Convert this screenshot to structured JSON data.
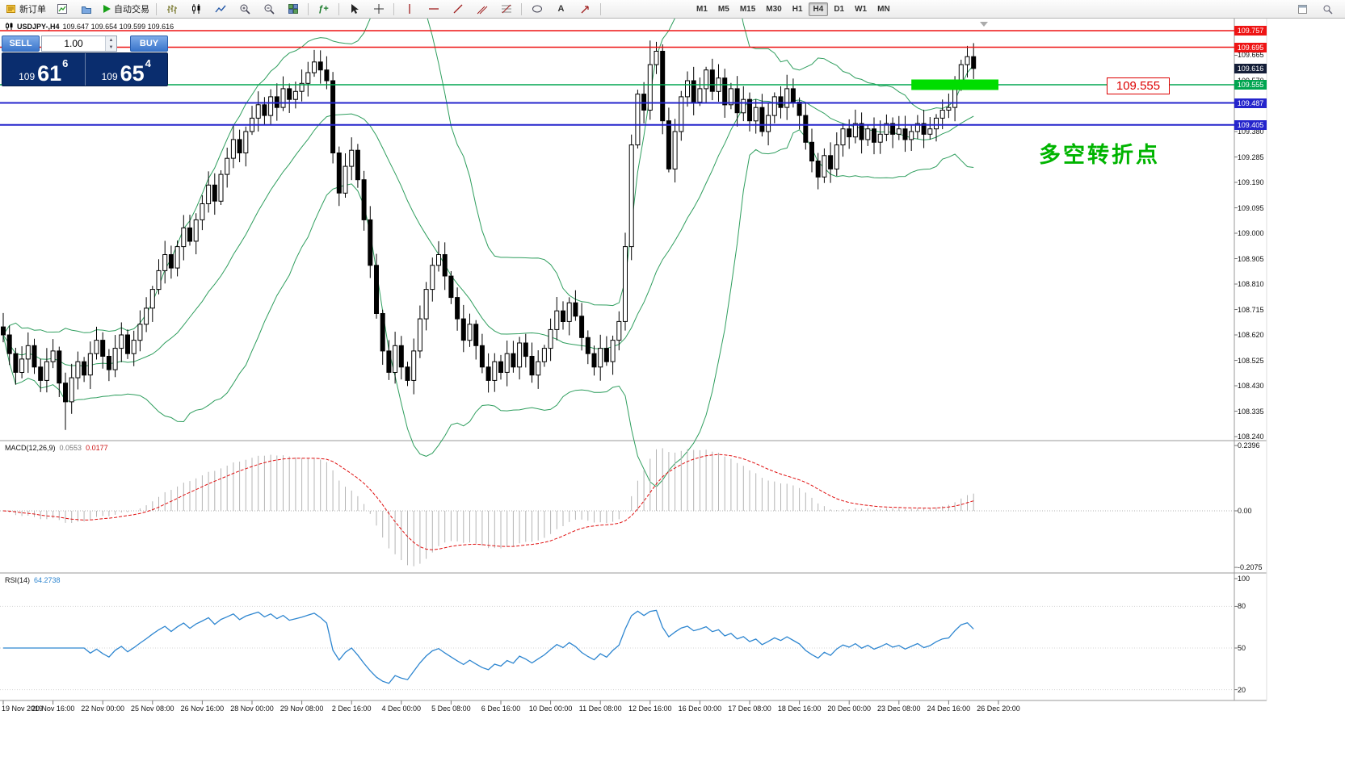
{
  "toolbar": {
    "new_order_label": "新订单",
    "autotrading_label": "自动交易",
    "timeframes": [
      "M1",
      "M5",
      "M15",
      "M30",
      "H1",
      "H4",
      "D1",
      "W1",
      "MN"
    ],
    "active_timeframe": "H4"
  },
  "chart": {
    "symbol": "USDJPY-,H4",
    "info_values": "109.647 109.654 109.599 109.616"
  },
  "trade_panel": {
    "sell_label": "SELL",
    "buy_label": "BUY",
    "volume": "1.00",
    "sell_prefix": "109",
    "sell_big": "61",
    "sell_sup": "6",
    "buy_prefix": "109",
    "buy_big": "65",
    "buy_sup": "4"
  },
  "macd": {
    "name": "MACD(12,26,9)",
    "value_main": "0.0553",
    "value_signal": "0.0177"
  },
  "rsi": {
    "name": "RSI(14)",
    "value": "64.2738"
  },
  "annotations": {
    "price_callout": "109.555",
    "turning_point": "多空转折点"
  },
  "chart_data": {
    "type": "candlestick",
    "symbol": "USDJPY",
    "timeframe": "H4",
    "price_axis_min": 108.24,
    "price_axis_max": 109.757,
    "current_price": 109.616,
    "current_price_badge_color": "#141e38",
    "bollinger_color": "#2f9e5e",
    "closes": [
      108.62,
      108.55,
      108.48,
      108.53,
      108.58,
      108.5,
      108.45,
      108.52,
      108.56,
      108.44,
      108.37,
      108.46,
      108.52,
      108.47,
      108.55,
      108.6,
      108.54,
      108.49,
      108.57,
      108.62,
      108.55,
      108.6,
      108.66,
      108.72,
      108.79,
      108.86,
      108.92,
      108.87,
      108.95,
      109.02,
      108.97,
      109.05,
      109.11,
      109.18,
      109.12,
      109.22,
      109.28,
      109.35,
      109.3,
      109.38,
      109.43,
      109.48,
      109.44,
      109.51,
      109.47,
      109.54,
      109.5,
      109.53,
      109.56,
      109.6,
      109.64,
      109.61,
      109.57,
      109.3,
      109.15,
      109.25,
      109.31,
      109.2,
      109.05,
      108.88,
      108.7,
      108.56,
      108.48,
      108.58,
      108.5,
      108.45,
      108.56,
      108.68,
      108.79,
      108.88,
      108.92,
      108.84,
      108.76,
      108.68,
      108.6,
      108.66,
      108.58,
      108.5,
      108.45,
      108.52,
      108.48,
      108.55,
      108.5,
      108.59,
      108.54,
      108.47,
      108.52,
      108.57,
      108.64,
      108.71,
      108.67,
      108.74,
      108.69,
      108.61,
      108.55,
      108.5,
      108.57,
      108.52,
      108.6,
      108.67,
      108.95,
      109.33,
      109.52,
      109.46,
      109.63,
      109.68,
      109.42,
      109.24,
      109.38,
      109.51,
      109.57,
      109.49,
      109.54,
      109.61,
      109.53,
      109.58,
      109.48,
      109.54,
      109.45,
      109.5,
      109.42,
      109.47,
      109.38,
      109.44,
      109.51,
      109.47,
      109.54,
      109.49,
      109.44,
      109.34,
      109.27,
      109.21,
      109.29,
      109.24,
      109.33,
      109.39,
      109.36,
      109.41,
      109.35,
      109.39,
      109.34,
      109.37,
      109.41,
      109.37,
      109.39,
      109.35,
      109.38,
      109.41,
      109.37,
      109.39,
      109.43,
      109.46,
      109.47,
      109.55,
      109.63,
      109.66,
      109.616
    ],
    "wick_overrides": {
      "10": {
        "low": 108.265
      },
      "50": {
        "high": 109.685
      },
      "104": {
        "high": 109.72
      },
      "105": {
        "high": 109.715
      },
      "155": {
        "high": 109.7
      }
    },
    "levels": [
      {
        "price": 109.757,
        "color": "#ee1414",
        "width": 1.5,
        "badge": true
      },
      {
        "price": 109.695,
        "color": "#ee1414",
        "width": 1.5,
        "badge": true
      },
      {
        "price": 109.555,
        "color": "#00a550",
        "width": 1.5,
        "badge": true
      },
      {
        "price": 109.487,
        "color": "#2525cc",
        "width": 2,
        "badge": true
      },
      {
        "price": 109.405,
        "color": "#2525cc",
        "width": 2,
        "badge": true
      }
    ],
    "highlight_rect": {
      "from_bar": 146,
      "to_bar": 160,
      "price": 109.555,
      "color": "#00dd00"
    },
    "price_axis_labels": [
      "109.665",
      "109.570",
      "109.475",
      "109.380",
      "109.285",
      "109.190",
      "109.095",
      "109.000",
      "108.905",
      "108.810",
      "108.715",
      "108.620",
      "108.525",
      "108.430",
      "108.335",
      "108.240"
    ],
    "macd_scale": [
      {
        "text": "0.2396",
        "value": 0.2396
      },
      {
        "text": "0.00",
        "value": 0
      },
      {
        "text": "-0.2075",
        "value": -0.2075
      }
    ],
    "rsi_scale": [
      {
        "text": "100",
        "value": 100
      },
      {
        "text": "80",
        "value": 80
      },
      {
        "text": "50",
        "value": 50
      },
      {
        "text": "20",
        "value": 20
      }
    ],
    "time_labels": [
      {
        "text": "19 Nov 2019",
        "bar": 0
      },
      {
        "text": "20 Nov 16:00",
        "bar": 8
      },
      {
        "text": "22 Nov 00:00",
        "bar": 16
      },
      {
        "text": "25 Nov 08:00",
        "bar": 24
      },
      {
        "text": "26 Nov 16:00",
        "bar": 32
      },
      {
        "text": "28 Nov 00:00",
        "bar": 40
      },
      {
        "text": "29 Nov 08:00",
        "bar": 48
      },
      {
        "text": "2 Dec 16:00",
        "bar": 56
      },
      {
        "text": "4 Dec 00:00",
        "bar": 64
      },
      {
        "text": "5 Dec 08:00",
        "bar": 72
      },
      {
        "text": "6 Dec 16:00",
        "bar": 80
      },
      {
        "text": "10 Dec 00:00",
        "bar": 88
      },
      {
        "text": "11 Dec 08:00",
        "bar": 96
      },
      {
        "text": "12 Dec 16:00",
        "bar": 104
      },
      {
        "text": "16 Dec 00:00",
        "bar": 112
      },
      {
        "text": "17 Dec 08:00",
        "bar": 120
      },
      {
        "text": "18 Dec 16:00",
        "bar": 128
      },
      {
        "text": "20 Dec 00:00",
        "bar": 136
      },
      {
        "text": "23 Dec 08:00",
        "bar": 144
      },
      {
        "text": "24 Dec 16:00",
        "bar": 152
      },
      {
        "text": "26 Dec 20:00",
        "bar": 160
      }
    ]
  }
}
